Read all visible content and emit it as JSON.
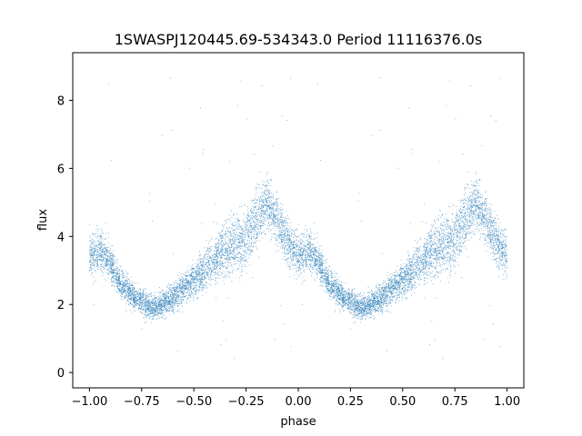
{
  "chart_data": {
    "type": "scatter",
    "title": "1SWASPJ120445.69-534343.0 Period 11116376.0s",
    "xlabel": "phase",
    "ylabel": "flux",
    "xlim": [
      -1.08,
      1.08
    ],
    "ylim": [
      -0.45,
      9.4
    ],
    "xticks": [
      -1.0,
      -0.75,
      -0.5,
      -0.25,
      0.0,
      0.25,
      0.5,
      0.75,
      1.0
    ],
    "xtick_labels": [
      "−1.00",
      "−0.75",
      "−0.50",
      "−0.25",
      "0.00",
      "0.25",
      "0.50",
      "0.75",
      "1.00"
    ],
    "yticks": [
      0,
      2,
      4,
      6,
      8
    ],
    "ytick_labels": [
      "0",
      "2",
      "4",
      "6",
      "8"
    ],
    "grid": false,
    "marker_color": "#1f77b4",
    "series": [
      {
        "envelope_x": [
          0.0,
          0.05,
          0.1,
          0.15,
          0.2,
          0.25,
          0.3,
          0.35,
          0.4,
          0.45,
          0.5,
          0.55,
          0.6,
          0.65,
          0.7,
          0.75,
          0.8,
          0.85,
          0.9,
          0.95,
          1.0
        ],
        "envelope_median": [
          3.4,
          3.6,
          3.2,
          2.6,
          2.3,
          2.1,
          1.9,
          2.0,
          2.2,
          2.5,
          2.7,
          3.0,
          3.3,
          3.6,
          3.8,
          3.9,
          4.5,
          5.0,
          4.5,
          3.8,
          3.4
        ],
        "envelope_spread": [
          0.9,
          0.8,
          0.7,
          0.6,
          0.6,
          0.5,
          0.5,
          0.5,
          0.6,
          0.6,
          0.7,
          0.8,
          0.9,
          1.1,
          1.2,
          1.2,
          1.2,
          1.1,
          1.0,
          0.9,
          0.9
        ],
        "points_per_cycle": 5200
      }
    ]
  }
}
